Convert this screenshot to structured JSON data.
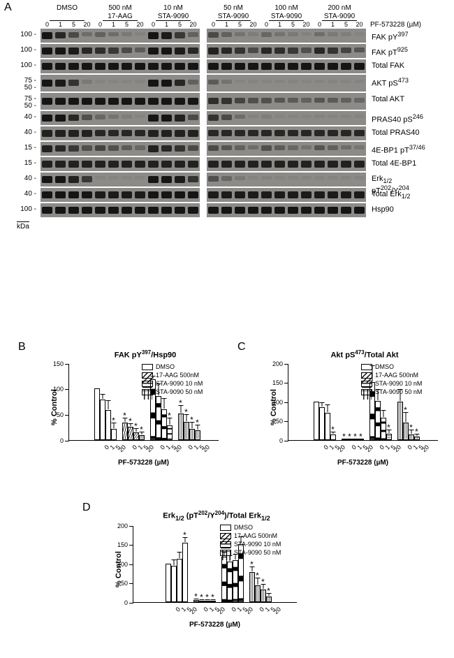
{
  "panelA": {
    "letter": "A",
    "kda_label": "kDa",
    "pf_label": "PF-573228 (µM)",
    "groups": [
      {
        "name": "DMSO",
        "sub": ""
      },
      {
        "name": "500 nM",
        "sub": "17-AAG"
      },
      {
        "name": "10 nM",
        "sub": "STA-9090"
      },
      {
        "name": "50 nM",
        "sub": "STA-9090"
      },
      {
        "name": "100 nM",
        "sub": "STA-9090"
      },
      {
        "name": "200 nM",
        "sub": "STA-9090"
      }
    ],
    "doses": [
      "0",
      "1",
      "5",
      "20"
    ],
    "left_strip_w": 228,
    "gap_w": 10,
    "right_strip_w": 228,
    "lane_w": 19,
    "rows": [
      {
        "mw": "100",
        "label": "FAK pY",
        "sup": "397",
        "bands": [
          1.0,
          0.85,
          0.55,
          0.25,
          0.35,
          0.25,
          0.15,
          0.08,
          1.0,
          0.95,
          0.7,
          0.35,
          0.55,
          0.35,
          0.2,
          0.12,
          0.3,
          0.2,
          0.15,
          0.08,
          0.25,
          0.15,
          0.1,
          0.05
        ]
      },
      {
        "mw": "100",
        "label": "FAK pT",
        "sup": "925",
        "bands": [
          1.0,
          1.0,
          0.95,
          0.85,
          0.8,
          0.7,
          0.55,
          0.4,
          1.0,
          1.0,
          0.95,
          0.85,
          0.9,
          0.85,
          0.75,
          0.55,
          0.85,
          0.8,
          0.7,
          0.5,
          0.85,
          0.75,
          0.6,
          0.45
        ]
      },
      {
        "mw": "100",
        "label": "Total FAK",
        "sup": "",
        "bands": [
          1,
          1,
          1,
          1,
          1,
          1,
          1,
          1,
          1,
          1,
          1,
          1,
          1,
          1,
          1,
          1,
          1,
          1,
          1,
          1,
          1,
          1,
          1,
          1
        ]
      },
      {
        "mw": "75",
        "mw2": "50",
        "label": "AKT pS",
        "sup": "473",
        "bands": [
          1,
          0.95,
          0.75,
          0.15,
          0,
          0,
          0,
          0,
          1,
          1,
          0.85,
          0.35,
          0.4,
          0.2,
          0.05,
          0.02,
          0.05,
          0.02,
          0.02,
          0.01,
          0.02,
          0.01,
          0.01,
          0.01
        ]
      },
      {
        "mw": "75",
        "mw2": "50",
        "label": "Total AKT",
        "sup": "",
        "bands": [
          1,
          1,
          1,
          1,
          1,
          1,
          1,
          1,
          1,
          1,
          1,
          1,
          0.8,
          0.75,
          0.6,
          0.5,
          0.5,
          0.45,
          0.4,
          0.35,
          0.45,
          0.4,
          0.35,
          0.3
        ]
      },
      {
        "mw": "40",
        "label": "PRAS40 pS",
        "sup": "246",
        "bands": [
          1,
          1,
          0.85,
          0.5,
          0.3,
          0.2,
          0.1,
          0.05,
          1,
          1,
          0.9,
          0.55,
          0.75,
          0.55,
          0.25,
          0.08,
          0.1,
          0.05,
          0.03,
          0.02,
          0.08,
          0.04,
          0.02,
          0.01
        ]
      },
      {
        "mw": "40",
        "label": "Total PRAS40",
        "sup": "",
        "bands": [
          0.9,
          0.9,
          0.9,
          0.9,
          0.85,
          0.85,
          0.85,
          0.85,
          0.9,
          0.9,
          0.9,
          0.9,
          0.85,
          0.85,
          0.85,
          0.85,
          0.85,
          0.85,
          0.85,
          0.85,
          0.85,
          0.85,
          0.85,
          0.85
        ]
      },
      {
        "mw": "15",
        "label": "4E-BP1 pT",
        "sup": "37/46",
        "bands": [
          0.9,
          0.85,
          0.7,
          0.5,
          0.6,
          0.5,
          0.4,
          0.3,
          0.9,
          0.85,
          0.75,
          0.55,
          0.55,
          0.45,
          0.35,
          0.25,
          0.5,
          0.4,
          0.3,
          0.2,
          0.45,
          0.35,
          0.25,
          0.18
        ]
      },
      {
        "mw": "15",
        "label": "Total 4E-BP1",
        "sup": "",
        "bands": [
          0.9,
          0.9,
          0.9,
          0.9,
          0.9,
          0.9,
          0.9,
          0.9,
          0.9,
          0.9,
          0.9,
          0.9,
          0.9,
          0.9,
          0.9,
          0.9,
          0.9,
          0.9,
          0.9,
          0.9,
          0.9,
          0.9,
          0.9,
          0.9
        ]
      },
      {
        "mw": "40",
        "label": "Erk",
        "sub": "1/2",
        "extra": " pT",
        "sup": "202",
        "extra2": "/Y",
        "sup2": "204",
        "bands": [
          1,
          1,
          0.9,
          0.7,
          0.05,
          0.03,
          0.02,
          0.01,
          1,
          1,
          0.95,
          0.75,
          0.5,
          0.3,
          0.15,
          0.05,
          0.08,
          0.04,
          0.02,
          0.01,
          0.05,
          0.03,
          0.02,
          0.01
        ]
      },
      {
        "mw": "40",
        "label": "Total Erk",
        "sub": "1/2",
        "bands": [
          1,
          1,
          1,
          1,
          0.95,
          0.95,
          0.95,
          0.95,
          1,
          1,
          1,
          1,
          0.95,
          0.95,
          0.95,
          0.95,
          0.95,
          0.95,
          0.95,
          0.95,
          0.95,
          0.95,
          0.95,
          0.95
        ]
      },
      {
        "mw": "100",
        "label": "Hsp90",
        "sup": "",
        "bands": [
          1,
          1,
          1,
          1,
          1,
          1,
          1,
          1,
          1,
          1,
          1,
          1,
          1,
          1,
          1,
          1,
          1,
          1,
          1,
          1,
          1,
          1,
          1,
          1
        ]
      }
    ]
  },
  "chart_common": {
    "ylabel": "% Control",
    "xlabel": "PF-573228 (µM)",
    "x_categories": [
      "0",
      "1",
      "5",
      "20"
    ],
    "legend_items": [
      {
        "label": "DMSO",
        "pattern": "open"
      },
      {
        "label": "17-AAG 500nM",
        "pattern": "diag"
      },
      {
        "label": "STA-9090 10 nM",
        "pattern": "horiz"
      },
      {
        "label": "STA-9090 50 nM",
        "pattern": "vert"
      }
    ],
    "colors": {
      "border": "#000",
      "bg": "#fff"
    }
  },
  "panelB": {
    "letter": "B",
    "title_html": "FAK pY<sup>397</sup>/Hsp90",
    "ymax": 150,
    "ytick": 50,
    "series": [
      {
        "pat": "open",
        "vals": [
          100,
          78,
          58,
          22
        ],
        "err": [
          0,
          10,
          18,
          10
        ],
        "sig": [
          0,
          0,
          0,
          1
        ]
      },
      {
        "pat": "diag",
        "vals": [
          34,
          25,
          14,
          9
        ],
        "err": [
          8,
          6,
          8,
          5
        ],
        "sig": [
          1,
          1,
          1,
          1
        ]
      },
      {
        "pat": "horiz",
        "vals": [
          118,
          86,
          60,
          28
        ],
        "err": [
          6,
          22,
          20,
          14
        ],
        "sig": [
          0,
          0,
          0,
          1
        ]
      },
      {
        "pat": "vert",
        "vals": [
          52,
          35,
          22,
          18
        ],
        "err": [
          14,
          14,
          12,
          10
        ],
        "sig": [
          1,
          1,
          1,
          1
        ]
      }
    ]
  },
  "panelC": {
    "letter": "C",
    "title_html": "Akt pS<sup>473</sup>/Total Akt",
    "ymax": 200,
    "ytick": 50,
    "series": [
      {
        "pat": "open",
        "vals": [
          100,
          84,
          70,
          14
        ],
        "err": [
          0,
          12,
          20,
          6
        ],
        "sig": [
          0,
          0,
          0,
          1
        ]
      },
      {
        "pat": "diag",
        "vals": [
          2,
          2,
          2,
          2
        ],
        "err": [
          0,
          0,
          0,
          0
        ],
        "sig": [
          1,
          1,
          1,
          1
        ]
      },
      {
        "pat": "horiz",
        "vals": [
          150,
          102,
          58,
          16
        ],
        "err": [
          42,
          28,
          18,
          8
        ],
        "sig": [
          0,
          0,
          0,
          1
        ]
      },
      {
        "pat": "vert",
        "vals": [
          100,
          44,
          14,
          8
        ],
        "err": [
          30,
          26,
          10,
          6
        ],
        "sig": [
          0,
          1,
          1,
          1
        ]
      }
    ]
  },
  "panelD": {
    "letter": "D",
    "title_html": "Erk<sub>1/2</sub> (pT<sup>202</sup>/Y<sup>204</sup>)/Total Erk<sub>1/2</sub>",
    "ymax": 200,
    "ytick": 50,
    "series": [
      {
        "pat": "open",
        "vals": [
          100,
          95,
          112,
          155
        ],
        "err": [
          0,
          14,
          16,
          12
        ],
        "sig": [
          0,
          0,
          0,
          1
        ]
      },
      {
        "pat": "diag",
        "vals": [
          5,
          4,
          4,
          3
        ],
        "err": [
          2,
          2,
          2,
          2
        ],
        "sig": [
          1,
          1,
          1,
          1
        ]
      },
      {
        "pat": "horiz",
        "vals": [
          118,
          106,
          108,
          150
        ],
        "err": [
          10,
          14,
          16,
          18
        ],
        "sig": [
          0,
          0,
          0,
          0
        ]
      },
      {
        "pat": "vert",
        "vals": [
          78,
          44,
          32,
          14
        ],
        "err": [
          12,
          18,
          14,
          8
        ],
        "sig": [
          1,
          1,
          1,
          1
        ]
      }
    ]
  }
}
